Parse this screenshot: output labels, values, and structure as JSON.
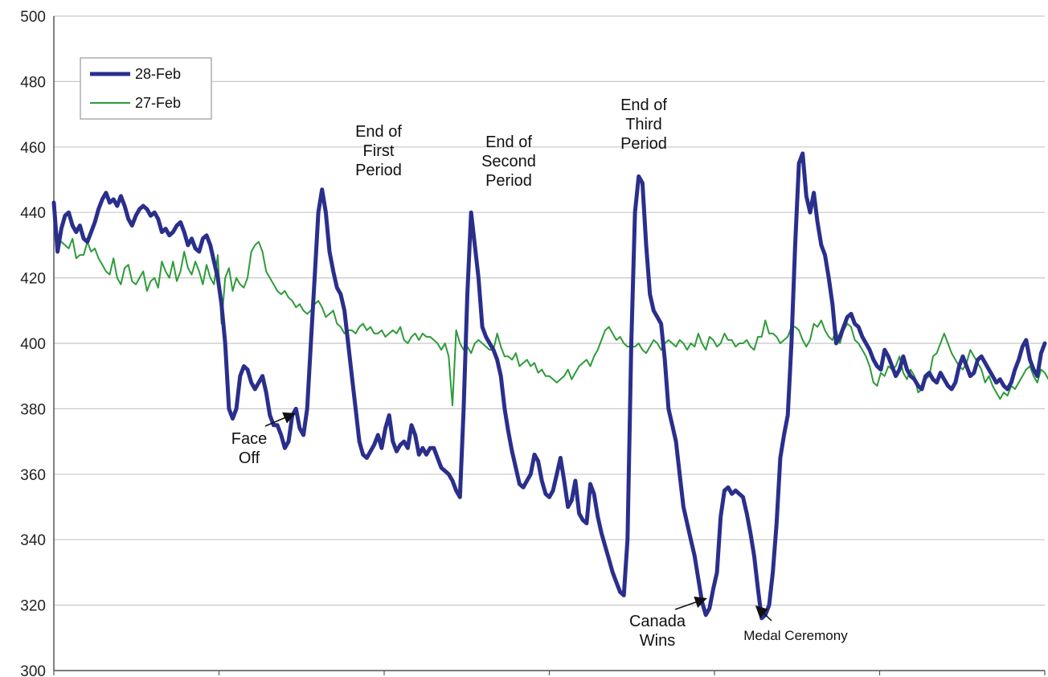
{
  "chart_data": {
    "type": "line",
    "title": "",
    "xlabel": "",
    "ylabel": "",
    "ylim": [
      300,
      500
    ],
    "yticks": [
      300,
      320,
      340,
      360,
      380,
      400,
      420,
      440,
      460,
      480,
      500
    ],
    "grid": true,
    "legend": "top-left",
    "series": [
      {
        "name": "28-Feb",
        "color": "#2a2f8c",
        "values": [
          443,
          428,
          435,
          439,
          440,
          436,
          434,
          436,
          432,
          431,
          434,
          437,
          441,
          444,
          446,
          443,
          444,
          442,
          445,
          442,
          438,
          436,
          439,
          441,
          442,
          441,
          439,
          440,
          438,
          434,
          435,
          433,
          434,
          436,
          437,
          434,
          430,
          432,
          429,
          428,
          432,
          433,
          430,
          425,
          420,
          412,
          400,
          380,
          377,
          380,
          390,
          393,
          392,
          388,
          386,
          388,
          390,
          385,
          378,
          375,
          375,
          372,
          368,
          370,
          378,
          380,
          374,
          372,
          380,
          400,
          420,
          440,
          447,
          440,
          428,
          422,
          417,
          415,
          410,
          400,
          390,
          380,
          370,
          366,
          365,
          367,
          369,
          372,
          368,
          374,
          378,
          370,
          367,
          369,
          370,
          368,
          375,
          372,
          366,
          368,
          366,
          368,
          368,
          365,
          362,
          361,
          360,
          358,
          355,
          353,
          380,
          415,
          440,
          430,
          420,
          405,
          402,
          400,
          398,
          395,
          390,
          380,
          373,
          367,
          362,
          357,
          356,
          358,
          360,
          366,
          364,
          358,
          354,
          353,
          355,
          360,
          365,
          358,
          350,
          352,
          358,
          348,
          346,
          345,
          357,
          354,
          347,
          342,
          338,
          334,
          330,
          327,
          324,
          323,
          340,
          400,
          440,
          451,
          449,
          430,
          415,
          410,
          408,
          406,
          395,
          380,
          375,
          370,
          360,
          350,
          345,
          340,
          335,
          328,
          321,
          317,
          319,
          325,
          330,
          347,
          355,
          356,
          354,
          355,
          354,
          353,
          348,
          342,
          335,
          325,
          316,
          317,
          320,
          330,
          345,
          365,
          372,
          378,
          400,
          430,
          455,
          458,
          445,
          440,
          446,
          437,
          430,
          427,
          420,
          412,
          400,
          402,
          405,
          408,
          409,
          406,
          405,
          402,
          400,
          398,
          395,
          393,
          392,
          398,
          396,
          393,
          390,
          392,
          396,
          392,
          390,
          389,
          387,
          386,
          390,
          391,
          389,
          388,
          391,
          389,
          387,
          386,
          388,
          393,
          396,
          393,
          390,
          391,
          395,
          396,
          394,
          392,
          390,
          388,
          389,
          387,
          386,
          388,
          392,
          395,
          399,
          401,
          395,
          392,
          390,
          397,
          400
        ]
      },
      {
        "name": "27-Feb",
        "color": "#2e9b3a",
        "values": [
          432,
          432,
          431,
          430,
          429,
          432,
          426,
          427,
          427,
          431,
          428,
          429,
          426,
          424,
          422,
          421,
          426,
          420,
          418,
          423,
          424,
          419,
          418,
          420,
          422,
          416,
          419,
          420,
          417,
          425,
          422,
          420,
          425,
          419,
          422,
          428,
          423,
          421,
          425,
          422,
          418,
          424,
          420,
          418,
          427,
          406,
          420,
          423,
          416,
          420,
          418,
          417,
          420,
          428,
          430,
          431,
          428,
          422,
          420,
          418,
          416,
          415,
          416,
          414,
          413,
          411,
          412,
          410,
          409,
          410,
          412,
          413,
          411,
          408,
          409,
          410,
          406,
          405,
          403,
          404,
          404,
          403,
          405,
          406,
          404,
          405,
          403,
          403,
          404,
          402,
          403,
          404,
          403,
          405,
          401,
          400,
          402,
          403,
          401,
          403,
          402,
          402,
          401,
          400,
          398,
          400,
          396,
          381,
          404,
          400,
          398,
          399,
          397,
          400,
          401,
          400,
          399,
          398,
          398,
          403,
          399,
          396,
          396,
          395,
          397,
          393,
          394,
          395,
          393,
          394,
          391,
          392,
          390,
          390,
          389,
          388,
          389,
          390,
          392,
          389,
          391,
          393,
          394,
          395,
          393,
          396,
          398,
          401,
          404,
          405,
          403,
          401,
          402,
          400,
          399,
          399,
          399,
          400,
          398,
          397,
          399,
          401,
          400,
          398,
          400,
          401,
          400,
          399,
          401,
          400,
          398,
          400,
          399,
          403,
          400,
          398,
          402,
          401,
          399,
          400,
          403,
          401,
          401,
          399,
          400,
          400,
          401,
          399,
          398,
          402,
          402,
          407,
          403,
          403,
          402,
          400,
          401,
          402,
          405,
          405,
          404,
          401,
          399,
          401,
          406,
          405,
          407,
          404,
          402,
          401,
          404,
          400,
          404,
          406,
          405,
          401,
          400,
          398,
          396,
          393,
          388,
          387,
          391,
          390,
          393,
          392,
          393,
          396,
          391,
          389,
          392,
          390,
          385,
          386,
          389,
          390,
          396,
          397,
          400,
          403,
          400,
          397,
          395,
          393,
          392,
          394,
          398,
          396,
          394,
          392,
          388,
          390,
          387,
          385,
          383,
          385,
          384,
          387,
          386,
          388,
          390,
          392,
          393,
          390,
          388,
          392,
          391,
          389,
          388
        ]
      }
    ],
    "annotations": [
      {
        "lines": [
          "Face",
          "Off"
        ]
      },
      {
        "lines": [
          "End of",
          "First",
          "Period"
        ]
      },
      {
        "lines": [
          "End of",
          "Second",
          "Period"
        ]
      },
      {
        "lines": [
          "End of",
          "Third",
          "Period"
        ]
      },
      {
        "lines": [
          "Canada",
          "Wins"
        ]
      },
      {
        "lines": [
          "Medal Ceremony"
        ]
      }
    ]
  }
}
